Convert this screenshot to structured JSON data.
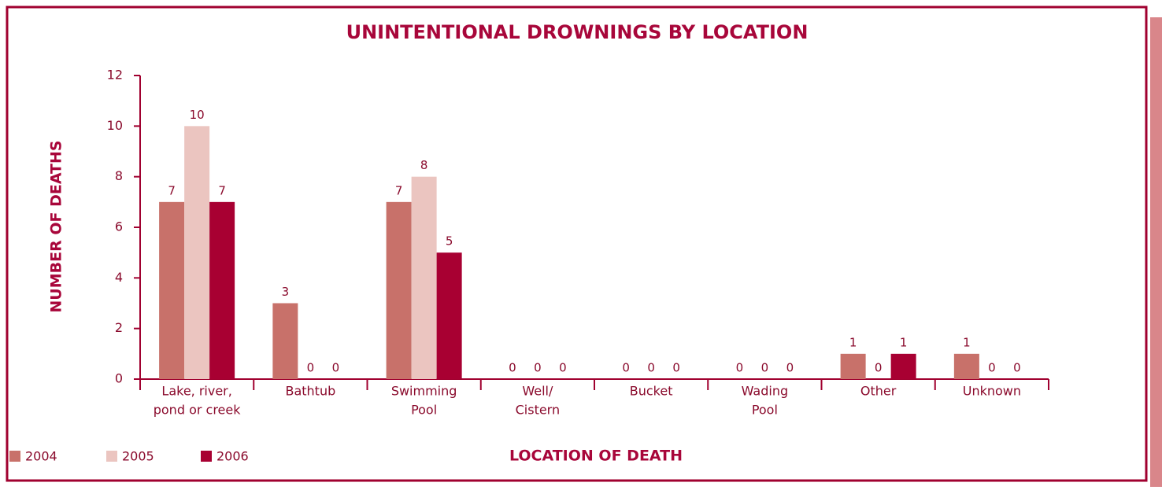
{
  "chart_data": {
    "type": "bar",
    "title": "UNINTENTIONAL DROWNINGS BY LOCATION",
    "x_label": "LOCATION OF DEATH",
    "y_label": "NUMBER OF DEATHS",
    "categories": [
      [
        "Lake, river,",
        "pond or creek"
      ],
      [
        "Bathtub"
      ],
      [
        "Swimming",
        "Pool"
      ],
      [
        "Well/",
        "Cistern"
      ],
      [
        "Bucket"
      ],
      [
        "Wading",
        "Pool"
      ],
      [
        "Other"
      ],
      [
        "Unknown"
      ]
    ],
    "series": [
      {
        "name": "2004",
        "color": "#c8716a",
        "values": [
          7,
          3,
          7,
          0,
          0,
          0,
          1,
          1
        ]
      },
      {
        "name": "2005",
        "color": "#ebc5c0",
        "values": [
          10,
          0,
          8,
          0,
          0,
          0,
          0,
          0
        ]
      },
      {
        "name": "2006",
        "color": "#a80032",
        "values": [
          7,
          0,
          5,
          0,
          0,
          0,
          1,
          0
        ]
      }
    ],
    "ylim": [
      0,
      12
    ],
    "yticks": [
      0,
      2,
      4,
      6,
      8,
      10,
      12
    ],
    "grid": false,
    "legend": "bottom-left"
  }
}
